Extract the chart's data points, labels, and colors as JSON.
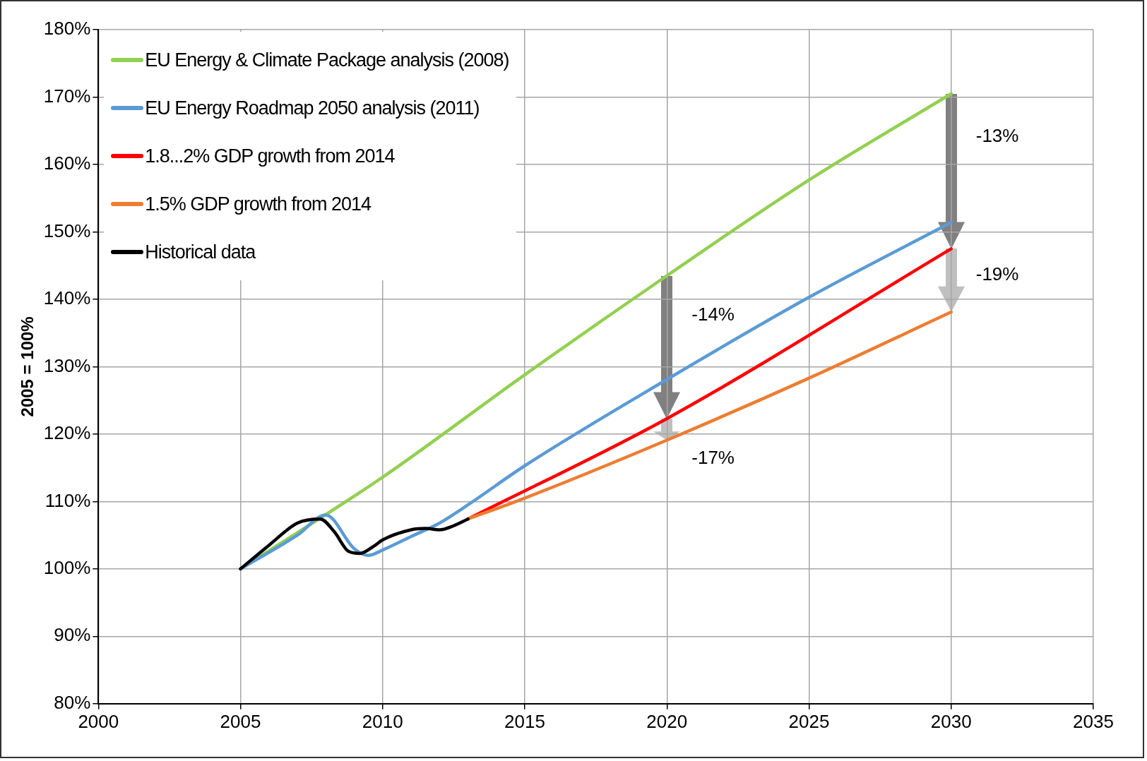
{
  "chart_data": {
    "type": "line",
    "ylabel": "2005 = 100%",
    "legend": "top left",
    "grid": true,
    "marker": "none",
    "line_style": "solid",
    "xlim": [
      2000,
      2035
    ],
    "xticks": [
      2000,
      2005,
      2010,
      2015,
      2020,
      2025,
      2030,
      2035
    ],
    "ylim": [
      80,
      180
    ],
    "yticks": [
      {
        "value": 80,
        "label": "80%"
      },
      {
        "value": 90,
        "label": "90%"
      },
      {
        "value": 100,
        "label": "100%"
      },
      {
        "value": 110,
        "label": "110%"
      },
      {
        "value": 120,
        "label": "120%"
      },
      {
        "value": 130,
        "label": "130%"
      },
      {
        "value": 140,
        "label": "140%"
      },
      {
        "value": 150,
        "label": "150%"
      },
      {
        "value": 160,
        "label": "160%"
      },
      {
        "value": 170,
        "label": "170%"
      },
      {
        "value": 180,
        "label": "180%"
      }
    ],
    "series": [
      {
        "name": "EU Energy & Climate Package analysis (2008)",
        "color": "#92d050",
        "x": [
          2005,
          2010,
          2015,
          2020,
          2025,
          2030
        ],
        "values": [
          100,
          113.6,
          128.8,
          143.5,
          157.7,
          170.5
        ]
      },
      {
        "name": "EU Energy Roadmap 2050 analysis (2011)",
        "color": "#5b9bd5",
        "x": [
          2005,
          2007,
          2008,
          2009,
          2009.5,
          2010,
          2011,
          2012,
          2013,
          2015,
          2020,
          2025,
          2030
        ],
        "values": [
          100,
          105,
          108,
          103,
          102,
          102.8,
          104.8,
          106.8,
          109.5,
          115.3,
          128.1,
          140.3,
          151.4
        ]
      },
      {
        "name": "1.8...2% GDP growth from 2014",
        "color": "#ff0000",
        "x": [
          2013,
          2020,
          2030
        ],
        "values": [
          107.4,
          122.3,
          147.5
        ]
      },
      {
        "name": "1.5% GDP growth from 2014",
        "color": "#ed7d31",
        "x": [
          2013,
          2015,
          2020,
          2025,
          2030
        ],
        "values": [
          107.4,
          110.5,
          119.1,
          128.3,
          138.1
        ]
      },
      {
        "name": "Historical data",
        "color": "#000000",
        "x": [
          2005,
          2006,
          2007,
          2007.8,
          2008.3,
          2008.8,
          2009.2,
          2009.7,
          2010,
          2011,
          2011.5,
          2012,
          2012.5,
          2013
        ],
        "values": [
          100,
          103.5,
          106.8,
          107.4,
          105.5,
          102.6,
          102.3,
          103.4,
          104.3,
          105.8,
          106,
          105.8,
          106.4,
          107.4
        ]
      }
    ],
    "annotations": [
      "-13%",
      "-19%",
      "-14%",
      "-17%"
    ]
  }
}
